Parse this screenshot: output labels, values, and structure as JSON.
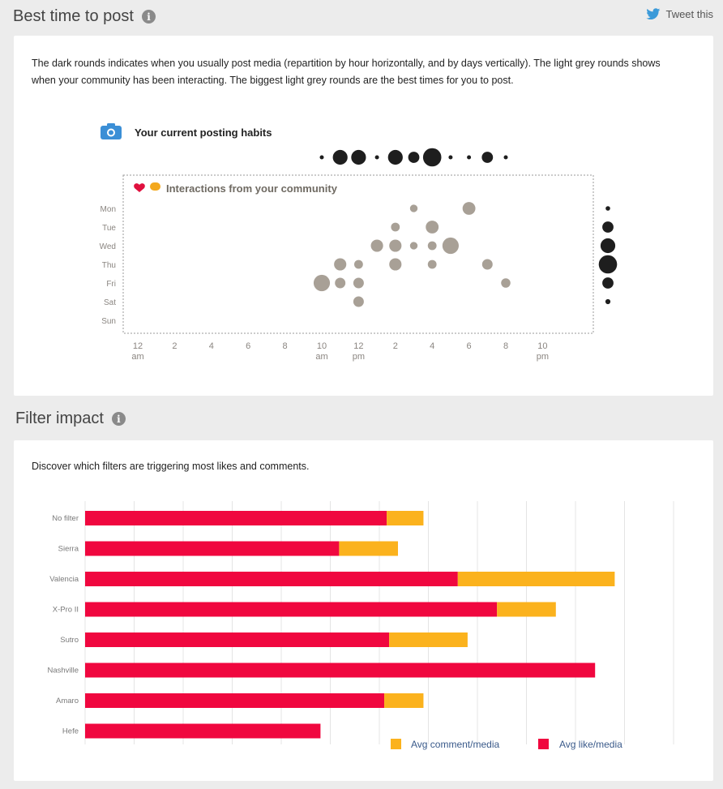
{
  "section1": {
    "title": "Best time to post",
    "tweet_label": "Tweet this",
    "description": "The dark rounds indicates when you usually post media (repartition by hour horizontally, and by days vertically). The light grey rounds shows when your community has been interacting. The biggest light grey rounds are the best times for you to post.",
    "habits_label": "Your current posting habits",
    "interactions_label": "Interactions from your community"
  },
  "section2": {
    "title": "Filter impact",
    "description": "Discover which filters are triggering most likes and comments."
  },
  "colors": {
    "dark_round": "#1e1e1e",
    "light_round": "#a8a096",
    "like": "#f0073f",
    "comment": "#fbb21d",
    "camera": "#3b8fd6",
    "twitter": "#3b9ad9"
  },
  "chart_data": [
    {
      "type": "scatter",
      "title": "",
      "days": [
        "Mon",
        "Tue",
        "Wed",
        "Thu",
        "Fri",
        "Sat",
        "Sun"
      ],
      "x_ticks": [
        {
          "hour": 0,
          "label": "12",
          "sub": "am"
        },
        {
          "hour": 2,
          "label": "2",
          "sub": ""
        },
        {
          "hour": 4,
          "label": "4",
          "sub": ""
        },
        {
          "hour": 6,
          "label": "6",
          "sub": ""
        },
        {
          "hour": 8,
          "label": "8",
          "sub": ""
        },
        {
          "hour": 10,
          "label": "10",
          "sub": "am"
        },
        {
          "hour": 12,
          "label": "12",
          "sub": "pm"
        },
        {
          "hour": 14,
          "label": "2",
          "sub": ""
        },
        {
          "hour": 16,
          "label": "4",
          "sub": ""
        },
        {
          "hour": 18,
          "label": "6",
          "sub": ""
        },
        {
          "hour": 20,
          "label": "8",
          "sub": ""
        },
        {
          "hour": 22,
          "label": "10",
          "sub": "pm"
        }
      ],
      "posting_by_hour": [
        {
          "hour": 10,
          "size": 1
        },
        {
          "hour": 11,
          "size": 3
        },
        {
          "hour": 12,
          "size": 3
        },
        {
          "hour": 13,
          "size": 1
        },
        {
          "hour": 14,
          "size": 3
        },
        {
          "hour": 15,
          "size": 2
        },
        {
          "hour": 16,
          "size": 4
        },
        {
          "hour": 17,
          "size": 1
        },
        {
          "hour": 18,
          "size": 1
        },
        {
          "hour": 19,
          "size": 2
        },
        {
          "hour": 20,
          "size": 1
        }
      ],
      "posting_by_day": [
        {
          "day": "Mon",
          "size": 1
        },
        {
          "day": "Tue",
          "size": 2
        },
        {
          "day": "Wed",
          "size": 3
        },
        {
          "day": "Thu",
          "size": 4
        },
        {
          "day": "Fri",
          "size": 2
        },
        {
          "day": "Sat",
          "size": 0.6
        }
      ],
      "interactions": [
        {
          "day": "Mon",
          "hour": 15,
          "size": 1.3
        },
        {
          "day": "Mon",
          "hour": 18,
          "size": 2.2
        },
        {
          "day": "Tue",
          "hour": 14,
          "size": 1.5
        },
        {
          "day": "Tue",
          "hour": 16,
          "size": 2.2
        },
        {
          "day": "Wed",
          "hour": 13,
          "size": 2.1
        },
        {
          "day": "Wed",
          "hour": 14,
          "size": 2.1
        },
        {
          "day": "Wed",
          "hour": 15,
          "size": 1.3
        },
        {
          "day": "Wed",
          "hour": 16,
          "size": 1.5
        },
        {
          "day": "Wed",
          "hour": 17,
          "size": 2.8
        },
        {
          "day": "Thu",
          "hour": 11,
          "size": 2.1
        },
        {
          "day": "Thu",
          "hour": 12,
          "size": 1.5
        },
        {
          "day": "Thu",
          "hour": 14,
          "size": 2.1
        },
        {
          "day": "Thu",
          "hour": 16,
          "size": 1.5
        },
        {
          "day": "Thu",
          "hour": 19,
          "size": 1.8
        },
        {
          "day": "Fri",
          "hour": 10,
          "size": 2.8
        },
        {
          "day": "Fri",
          "hour": 11,
          "size": 1.8
        },
        {
          "day": "Fri",
          "hour": 12,
          "size": 1.8
        },
        {
          "day": "Fri",
          "hour": 20,
          "size": 1.6
        },
        {
          "day": "Sat",
          "hour": 12,
          "size": 1.8
        }
      ]
    },
    {
      "type": "bar",
      "orientation": "horizontal",
      "stacked": true,
      "categories": [
        "No filter",
        "Sierra",
        "Valencia",
        "X-Pro II",
        "Sutro",
        "Nashville",
        "Amaro",
        "Hefe"
      ],
      "series": [
        {
          "name": "Avg like/media",
          "values": [
            61.5,
            51.8,
            76,
            84,
            62,
            104,
            61,
            48
          ]
        },
        {
          "name": "Avg comment/media",
          "values": [
            7.5,
            12,
            32,
            12,
            16,
            0,
            8,
            0
          ]
        }
      ],
      "xlim": [
        0,
        120
      ],
      "grid": true,
      "legend_position": "bottom-right"
    }
  ]
}
